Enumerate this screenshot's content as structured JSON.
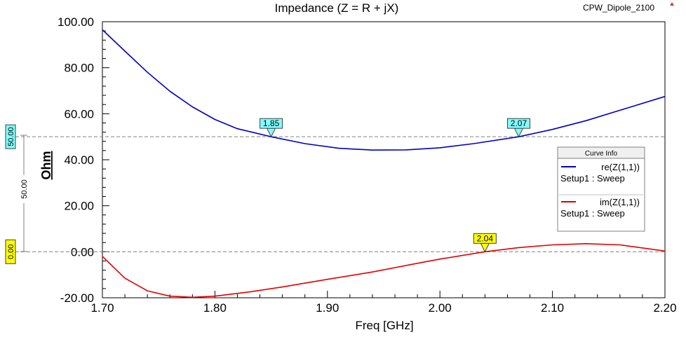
{
  "chart_data": {
    "type": "line",
    "title": "Impedance (Z = R + jX)",
    "project_label": "CPW_Dipole_2100",
    "xlabel": "Freq [GHz]",
    "ylabel": "Ohm",
    "xlim": [
      1.7,
      2.2
    ],
    "ylim": [
      -20,
      100
    ],
    "x_ticks": [
      "1.70",
      "1.80",
      "1.90",
      "2.00",
      "2.10",
      "2.20"
    ],
    "y_ticks": [
      "-20.00",
      "0.00",
      "20.00",
      "40.00",
      "60.00",
      "80.00",
      "100.00"
    ],
    "grid": false,
    "reference_lines": [
      {
        "y": 50,
        "label": "50.00",
        "color": "#80ffff"
      },
      {
        "y": 0,
        "label": "0.00",
        "color": "#ffff00"
      }
    ],
    "delta_marker": {
      "label": "50.00"
    },
    "legend": {
      "title": "Curve Info",
      "position": "right",
      "entries": [
        {
          "name": "re(Z(1,1))",
          "sub": "Setup1 : Sweep"
        },
        {
          "name": "im(Z(1,1))",
          "sub": "Setup1 : Sweep"
        }
      ]
    },
    "series": [
      {
        "name": "re(Z(1,1))",
        "color": "#0000c0",
        "x": [
          1.7,
          1.72,
          1.74,
          1.76,
          1.78,
          1.8,
          1.82,
          1.85,
          1.88,
          1.91,
          1.94,
          1.97,
          2.0,
          2.03,
          2.07,
          2.1,
          2.13,
          2.16,
          2.2
        ],
        "y": [
          96.5,
          87.2,
          78.0,
          69.8,
          63.0,
          57.5,
          53.5,
          50.0,
          47.0,
          45.0,
          44.2,
          44.3,
          45.2,
          47.0,
          50.0,
          53.2,
          57.0,
          61.5,
          67.5
        ]
      },
      {
        "name": "im(Z(1,1))",
        "color": "#e00000",
        "x": [
          1.7,
          1.72,
          1.74,
          1.76,
          1.78,
          1.8,
          1.83,
          1.86,
          1.9,
          1.94,
          1.98,
          2.0,
          2.04,
          2.07,
          2.1,
          2.13,
          2.16,
          2.2
        ],
        "y": [
          -2.0,
          -11.5,
          -17.0,
          -19.3,
          -19.8,
          -19.3,
          -17.5,
          -15.3,
          -12.0,
          -8.8,
          -5.0,
          -3.2,
          0.0,
          1.8,
          3.0,
          3.5,
          3.0,
          0.3
        ]
      }
    ],
    "markers": [
      {
        "label": "1.85",
        "x": 1.85,
        "y": 50,
        "color": "#80ffff"
      },
      {
        "label": "2.07",
        "x": 2.07,
        "y": 50,
        "color": "#80ffff"
      },
      {
        "label": "2.04",
        "x": 2.04,
        "y": 0,
        "color": "#ffff00"
      }
    ]
  }
}
